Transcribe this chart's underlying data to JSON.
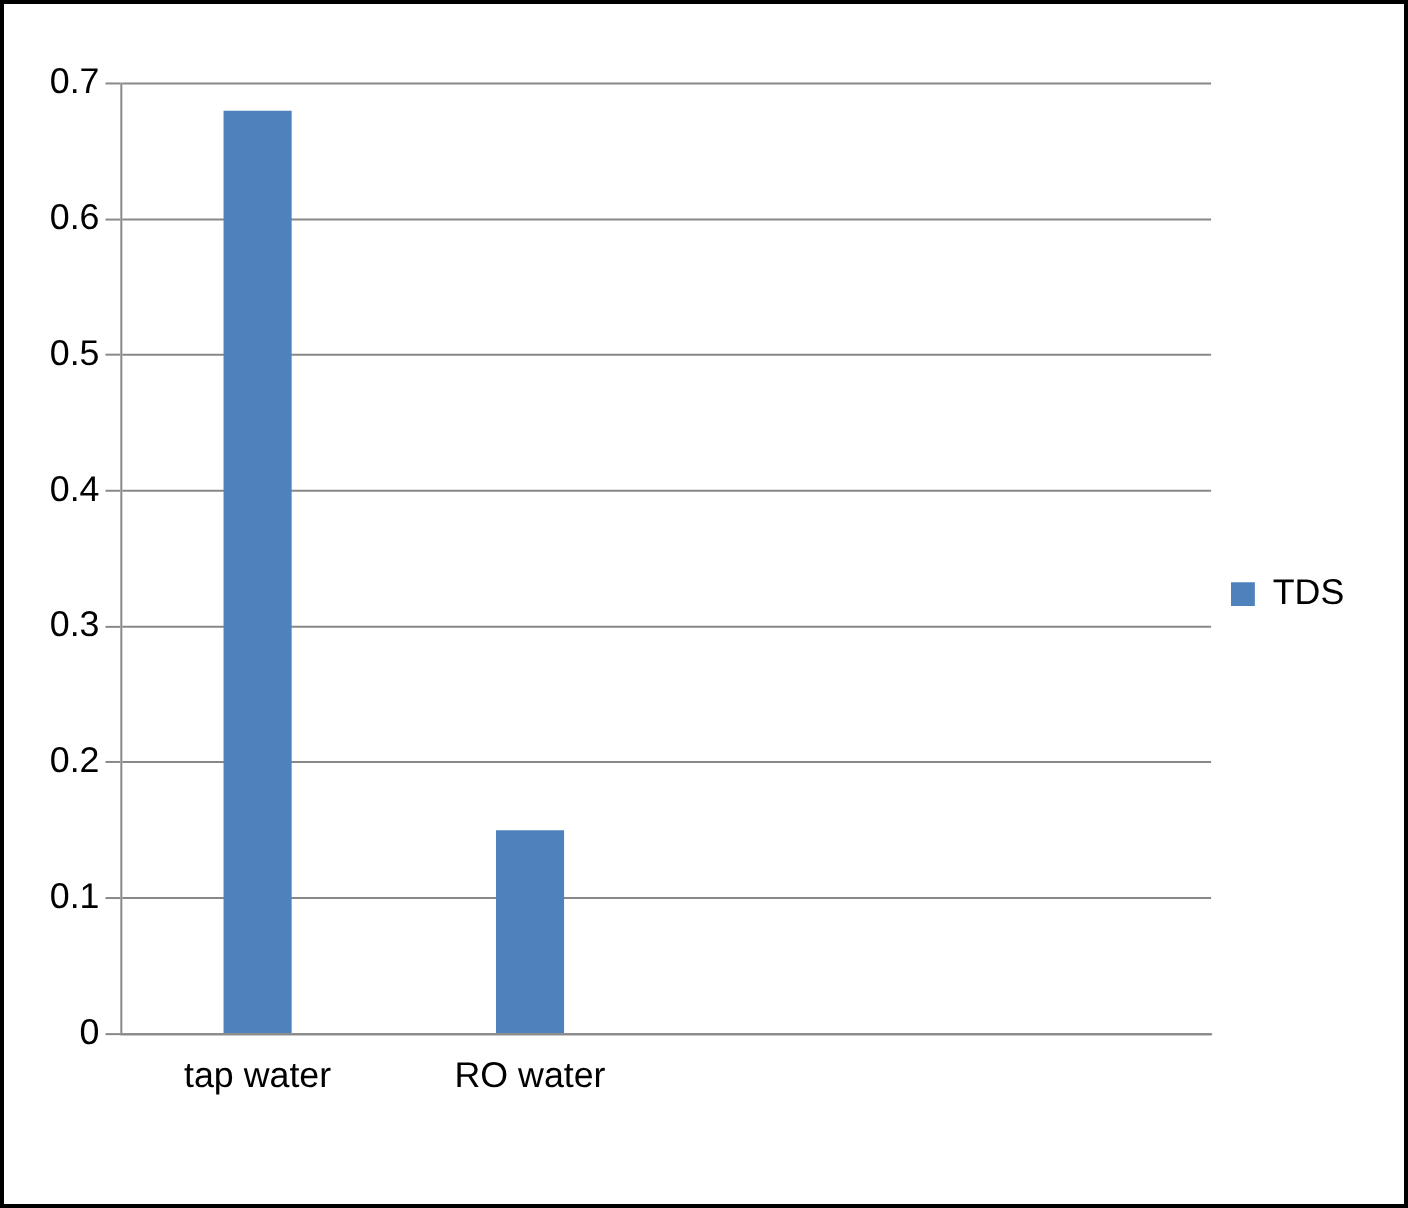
{
  "chart_data": {
    "type": "bar",
    "categories": [
      "tap water",
      "RO water",
      null,
      null
    ],
    "series": [
      {
        "name": "TDS",
        "color": "#4f81bd",
        "values": [
          0.68,
          0.15,
          null,
          null
        ]
      }
    ],
    "ylim": [
      0,
      0.7
    ],
    "yticks": [
      0,
      0.1,
      0.2,
      0.3,
      0.4,
      0.5,
      0.6,
      0.7
    ],
    "grid": "y",
    "legend": "right"
  }
}
